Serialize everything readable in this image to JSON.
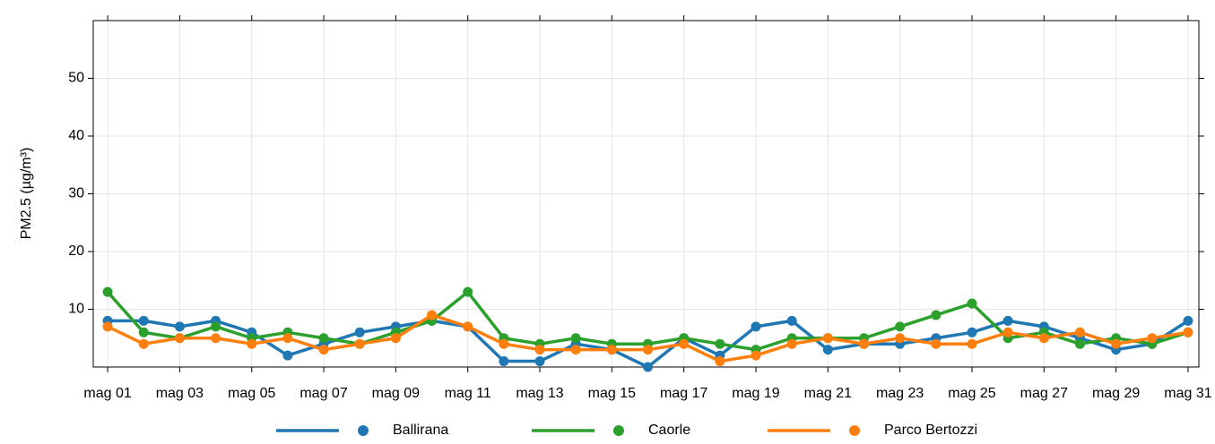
{
  "chart_data": {
    "type": "line",
    "y_label": "PM2.5 (µg/m³)",
    "x": [
      1,
      2,
      3,
      4,
      5,
      6,
      7,
      8,
      9,
      10,
      11,
      12,
      13,
      14,
      15,
      16,
      17,
      18,
      19,
      20,
      21,
      22,
      23,
      24,
      25,
      26,
      27,
      28,
      29,
      30,
      31
    ],
    "xlim": [
      0.6,
      31.3
    ],
    "xticks": [
      {
        "value": 1,
        "label": "mag 01"
      },
      {
        "value": 3,
        "label": "mag 03"
      },
      {
        "value": 5,
        "label": "mag 05"
      },
      {
        "value": 7,
        "label": "mag 07"
      },
      {
        "value": 9,
        "label": "mag 09"
      },
      {
        "value": 11,
        "label": "mag 11"
      },
      {
        "value": 13,
        "label": "mag 13"
      },
      {
        "value": 15,
        "label": "mag 15"
      },
      {
        "value": 17,
        "label": "mag 17"
      },
      {
        "value": 19,
        "label": "mag 19"
      },
      {
        "value": 21,
        "label": "mag 21"
      },
      {
        "value": 23,
        "label": "mag 23"
      },
      {
        "value": 25,
        "label": "mag 25"
      },
      {
        "value": 27,
        "label": "mag 27"
      },
      {
        "value": 29,
        "label": "mag 29"
      },
      {
        "value": 31,
        "label": "mag 31"
      }
    ],
    "ylim": [
      0,
      60
    ],
    "yticks": [
      10,
      20,
      30,
      40,
      50
    ],
    "grid": true,
    "legend": "bottom",
    "series": [
      {
        "name": "Ballirana",
        "color": "#1f77b4",
        "values": [
          8,
          8,
          7,
          8,
          6,
          2,
          4,
          6,
          7,
          8,
          7,
          1,
          1,
          4,
          3,
          0,
          5,
          2,
          7,
          8,
          3,
          4,
          4,
          5,
          6,
          8,
          7,
          5,
          3,
          4,
          8
        ]
      },
      {
        "name": "Caorle",
        "color": "#2ca02c",
        "values": [
          13,
          6,
          5,
          7,
          5,
          6,
          5,
          4,
          6,
          8,
          13,
          5,
          4,
          5,
          4,
          4,
          5,
          4,
          3,
          5,
          5,
          5,
          7,
          9,
          11,
          5,
          6,
          4,
          5,
          4,
          6
        ]
      },
      {
        "name": "Parco Bertozzi",
        "color": "#ff7f0e",
        "values": [
          7,
          4,
          5,
          5,
          4,
          5,
          3,
          4,
          5,
          9,
          7,
          4,
          3,
          3,
          3,
          3,
          4,
          1,
          2,
          4,
          5,
          4,
          5,
          4,
          4,
          6,
          5,
          6,
          4,
          5,
          6
        ]
      }
    ]
  }
}
